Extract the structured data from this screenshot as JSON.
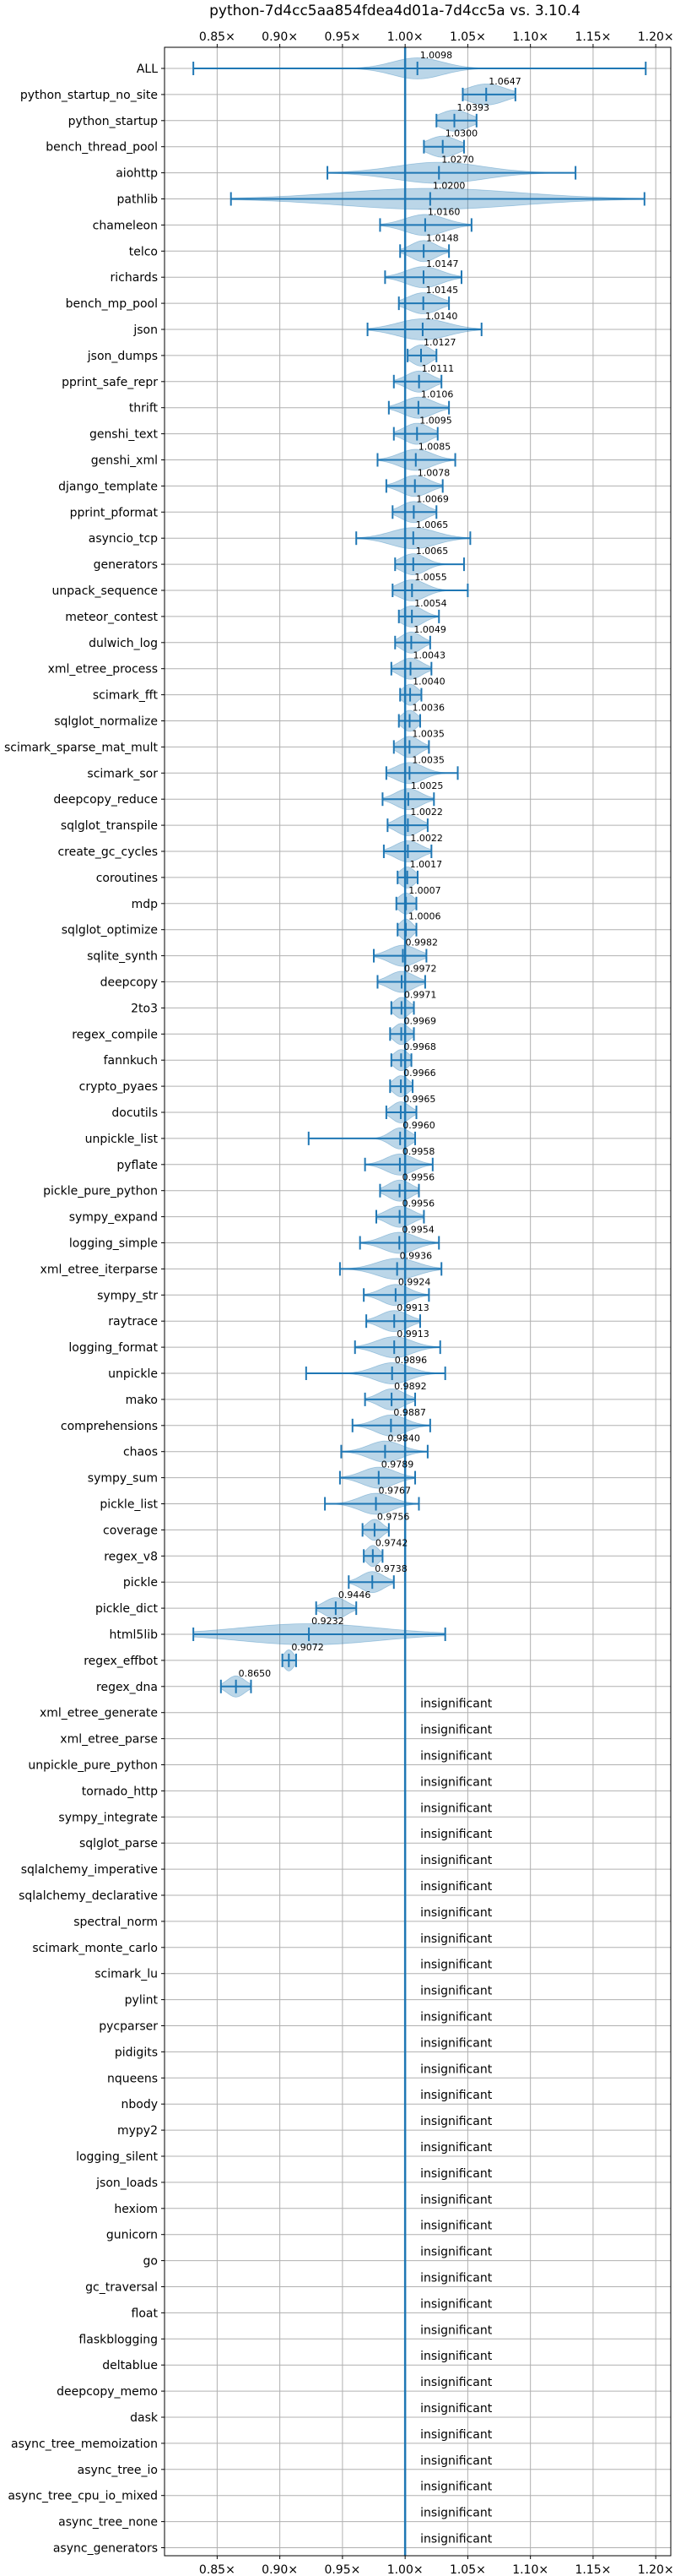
{
  "chart_data": {
    "type": "violin",
    "title": "python-7d4cc5aa854fdea4d01a-7d4cc5a vs. 3.10.4",
    "xlim": [
      0.808,
      1.212
    ],
    "x_ticks": [
      {
        "value": 0.85,
        "label": "0.85×"
      },
      {
        "value": 0.9,
        "label": "0.90×"
      },
      {
        "value": 0.95,
        "label": "0.95×"
      },
      {
        "value": 1.0,
        "label": "1.00×"
      },
      {
        "value": 1.05,
        "label": "1.05×"
      },
      {
        "value": 1.1,
        "label": "1.10×"
      },
      {
        "value": 1.15,
        "label": "1.15×"
      },
      {
        "value": 1.2,
        "label": "1.20×"
      }
    ],
    "reference_line": 1.0,
    "grid": true,
    "insignificant_text": "insignificant",
    "benchmarks": [
      {
        "name": "ALL",
        "mean": 1.0098,
        "label": "1.0098",
        "min": 0.831,
        "max": 1.192,
        "spread": 0.02
      },
      {
        "name": "python_startup_no_site",
        "mean": 1.0647,
        "label": "1.0647",
        "min": 1.046,
        "max": 1.088,
        "spread": 0.015
      },
      {
        "name": "python_startup",
        "mean": 1.0393,
        "label": "1.0393",
        "min": 1.025,
        "max": 1.057,
        "spread": 0.012
      },
      {
        "name": "bench_thread_pool",
        "mean": 1.03,
        "label": "1.0300",
        "min": 1.015,
        "max": 1.047,
        "spread": 0.012
      },
      {
        "name": "aiohttp",
        "mean": 1.027,
        "label": "1.0270",
        "min": 0.938,
        "max": 1.136,
        "spread": 0.035
      },
      {
        "name": "pathlib",
        "mean": 1.02,
        "label": "1.0200",
        "min": 0.861,
        "max": 1.191,
        "spread": 0.07
      },
      {
        "name": "chameleon",
        "mean": 1.016,
        "label": "1.0160",
        "min": 0.98,
        "max": 1.053,
        "spread": 0.016
      },
      {
        "name": "telco",
        "mean": 1.0148,
        "label": "1.0148",
        "min": 0.996,
        "max": 1.035,
        "spread": 0.01
      },
      {
        "name": "richards",
        "mean": 1.0147,
        "label": "1.0147",
        "min": 0.984,
        "max": 1.045,
        "spread": 0.014
      },
      {
        "name": "bench_mp_pool",
        "mean": 1.0145,
        "label": "1.0145",
        "min": 0.995,
        "max": 1.035,
        "spread": 0.012
      },
      {
        "name": "json",
        "mean": 1.014,
        "label": "1.0140",
        "min": 0.97,
        "max": 1.061,
        "spread": 0.02
      },
      {
        "name": "json_dumps",
        "mean": 1.0127,
        "label": "1.0127",
        "min": 1.002,
        "max": 1.025,
        "spread": 0.008
      },
      {
        "name": "pprint_safe_repr",
        "mean": 1.0111,
        "label": "1.0111",
        "min": 0.991,
        "max": 1.029,
        "spread": 0.01
      },
      {
        "name": "thrift",
        "mean": 1.0106,
        "label": "1.0106",
        "min": 0.987,
        "max": 1.035,
        "spread": 0.012
      },
      {
        "name": "genshi_text",
        "mean": 1.0095,
        "label": "1.0095",
        "min": 0.991,
        "max": 1.026,
        "spread": 0.01
      },
      {
        "name": "genshi_xml",
        "mean": 1.0085,
        "label": "1.0085",
        "min": 0.978,
        "max": 1.04,
        "spread": 0.013
      },
      {
        "name": "django_template",
        "mean": 1.0078,
        "label": "1.0078",
        "min": 0.985,
        "max": 1.03,
        "spread": 0.011
      },
      {
        "name": "pprint_pformat",
        "mean": 1.0069,
        "label": "1.0069",
        "min": 0.99,
        "max": 1.025,
        "spread": 0.01
      },
      {
        "name": "asyncio_tcp",
        "mean": 1.0065,
        "label": "1.0065",
        "min": 0.961,
        "max": 1.052,
        "spread": 0.018
      },
      {
        "name": "generators",
        "mean": 1.0065,
        "label": "1.0065",
        "min": 0.992,
        "max": 1.047,
        "spread": 0.01
      },
      {
        "name": "unpack_sequence",
        "mean": 1.0055,
        "label": "1.0055",
        "min": 0.99,
        "max": 1.05,
        "spread": 0.011
      },
      {
        "name": "meteor_contest",
        "mean": 1.0054,
        "label": "1.0054",
        "min": 0.995,
        "max": 1.027,
        "spread": 0.009
      },
      {
        "name": "dulwich_log",
        "mean": 1.0049,
        "label": "1.0049",
        "min": 0.992,
        "max": 1.02,
        "spread": 0.008
      },
      {
        "name": "xml_etree_process",
        "mean": 1.0043,
        "label": "1.0043",
        "min": 0.989,
        "max": 1.021,
        "spread": 0.009
      },
      {
        "name": "scimark_fft",
        "mean": 1.004,
        "label": "1.0040",
        "min": 0.996,
        "max": 1.013,
        "spread": 0.006
      },
      {
        "name": "sqlglot_normalize",
        "mean": 1.0036,
        "label": "1.0036",
        "min": 0.995,
        "max": 1.012,
        "spread": 0.006
      },
      {
        "name": "scimark_sparse_mat_mult",
        "mean": 1.0035,
        "label": "1.0035",
        "min": 0.991,
        "max": 1.019,
        "spread": 0.008
      },
      {
        "name": "scimark_sor",
        "mean": 1.0035,
        "label": "1.0035",
        "min": 0.985,
        "max": 1.042,
        "spread": 0.011
      },
      {
        "name": "deepcopy_reduce",
        "mean": 1.0025,
        "label": "1.0025",
        "min": 0.982,
        "max": 1.023,
        "spread": 0.01
      },
      {
        "name": "sqlglot_transpile",
        "mean": 1.0022,
        "label": "1.0022",
        "min": 0.986,
        "max": 1.018,
        "spread": 0.009
      },
      {
        "name": "create_gc_cycles",
        "mean": 1.0022,
        "label": "1.0022",
        "min": 0.983,
        "max": 1.021,
        "spread": 0.01
      },
      {
        "name": "coroutines",
        "mean": 1.0017,
        "label": "1.0017",
        "min": 0.994,
        "max": 1.01,
        "spread": 0.006
      },
      {
        "name": "mdp",
        "mean": 1.0007,
        "label": "1.0007",
        "min": 0.993,
        "max": 1.009,
        "spread": 0.006
      },
      {
        "name": "sqlglot_optimize",
        "mean": 1.0006,
        "label": "1.0006",
        "min": 0.994,
        "max": 1.009,
        "spread": 0.005
      },
      {
        "name": "sqlite_synth",
        "mean": 0.9982,
        "label": "0.9982",
        "min": 0.975,
        "max": 1.017,
        "spread": 0.011
      },
      {
        "name": "deepcopy",
        "mean": 0.9972,
        "label": "0.9972",
        "min": 0.978,
        "max": 1.016,
        "spread": 0.01
      },
      {
        "name": "2to3",
        "mean": 0.9971,
        "label": "0.9971",
        "min": 0.989,
        "max": 1.007,
        "spread": 0.006
      },
      {
        "name": "regex_compile",
        "mean": 0.9969,
        "label": "0.9969",
        "min": 0.988,
        "max": 1.007,
        "spread": 0.006
      },
      {
        "name": "fannkuch",
        "mean": 0.9968,
        "label": "0.9968",
        "min": 0.989,
        "max": 1.005,
        "spread": 0.006
      },
      {
        "name": "crypto_pyaes",
        "mean": 0.9966,
        "label": "0.9966",
        "min": 0.988,
        "max": 1.006,
        "spread": 0.006
      },
      {
        "name": "docutils",
        "mean": 0.9965,
        "label": "0.9965",
        "min": 0.985,
        "max": 1.009,
        "spread": 0.007
      },
      {
        "name": "unpickle_list",
        "mean": 0.996,
        "label": "0.9960",
        "min": 0.923,
        "max": 1.008,
        "spread": 0.008
      },
      {
        "name": "pyflate",
        "mean": 0.9958,
        "label": "0.9958",
        "min": 0.968,
        "max": 1.022,
        "spread": 0.011
      },
      {
        "name": "pickle_pure_python",
        "mean": 0.9956,
        "label": "0.9956",
        "min": 0.98,
        "max": 1.011,
        "spread": 0.009
      },
      {
        "name": "sympy_expand",
        "mean": 0.9956,
        "label": "0.9956",
        "min": 0.977,
        "max": 1.015,
        "spread": 0.01
      },
      {
        "name": "logging_simple",
        "mean": 0.9954,
        "label": "0.9954",
        "min": 0.964,
        "max": 1.027,
        "spread": 0.013
      },
      {
        "name": "xml_etree_iterparse",
        "mean": 0.9936,
        "label": "0.9936",
        "min": 0.948,
        "max": 1.029,
        "spread": 0.016
      },
      {
        "name": "sympy_str",
        "mean": 0.9924,
        "label": "0.9924",
        "min": 0.967,
        "max": 1.019,
        "spread": 0.011
      },
      {
        "name": "raytrace",
        "mean": 0.9913,
        "label": "0.9913",
        "min": 0.969,
        "max": 1.012,
        "spread": 0.011
      },
      {
        "name": "logging_format",
        "mean": 0.9913,
        "label": "0.9913",
        "min": 0.96,
        "max": 1.028,
        "spread": 0.014
      },
      {
        "name": "unpickle",
        "mean": 0.9896,
        "label": "0.9896",
        "min": 0.921,
        "max": 1.032,
        "spread": 0.014
      },
      {
        "name": "mako",
        "mean": 0.9892,
        "label": "0.9892",
        "min": 0.968,
        "max": 1.008,
        "spread": 0.01
      },
      {
        "name": "comprehensions",
        "mean": 0.9887,
        "label": "0.9887",
        "min": 0.958,
        "max": 1.02,
        "spread": 0.012
      },
      {
        "name": "chaos",
        "mean": 0.984,
        "label": "0.9840",
        "min": 0.949,
        "max": 1.018,
        "spread": 0.013
      },
      {
        "name": "sympy_sum",
        "mean": 0.9789,
        "label": "0.9789",
        "min": 0.948,
        "max": 1.008,
        "spread": 0.013
      },
      {
        "name": "pickle_list",
        "mean": 0.9767,
        "label": "0.9767",
        "min": 0.936,
        "max": 1.011,
        "spread": 0.013
      },
      {
        "name": "coverage",
        "mean": 0.9756,
        "label": "0.9756",
        "min": 0.966,
        "max": 0.987,
        "spread": 0.006
      },
      {
        "name": "regex_v8",
        "mean": 0.9742,
        "label": "0.9742",
        "min": 0.967,
        "max": 0.982,
        "spread": 0.005
      },
      {
        "name": "pickle",
        "mean": 0.9738,
        "label": "0.9738",
        "min": 0.955,
        "max": 0.991,
        "spread": 0.009
      },
      {
        "name": "pickle_dict",
        "mean": 0.9446,
        "label": "0.9446",
        "min": 0.929,
        "max": 0.961,
        "spread": 0.009
      },
      {
        "name": "html5lib",
        "mean": 0.9232,
        "label": "0.9232",
        "min": 0.831,
        "max": 1.032,
        "spread": 0.055
      },
      {
        "name": "regex_effbot",
        "mean": 0.9072,
        "label": "0.9072",
        "min": 0.902,
        "max": 0.913,
        "spread": 0.004
      },
      {
        "name": "regex_dna",
        "mean": 0.865,
        "label": "0.8650",
        "min": 0.853,
        "max": 0.877,
        "spread": 0.007
      },
      {
        "name": "xml_etree_generate",
        "insignificant": true
      },
      {
        "name": "xml_etree_parse",
        "insignificant": true
      },
      {
        "name": "unpickle_pure_python",
        "insignificant": true
      },
      {
        "name": "tornado_http",
        "insignificant": true
      },
      {
        "name": "sympy_integrate",
        "insignificant": true
      },
      {
        "name": "sqlglot_parse",
        "insignificant": true
      },
      {
        "name": "sqlalchemy_imperative",
        "insignificant": true
      },
      {
        "name": "sqlalchemy_declarative",
        "insignificant": true
      },
      {
        "name": "spectral_norm",
        "insignificant": true
      },
      {
        "name": "scimark_monte_carlo",
        "insignificant": true
      },
      {
        "name": "scimark_lu",
        "insignificant": true
      },
      {
        "name": "pylint",
        "insignificant": true
      },
      {
        "name": "pycparser",
        "insignificant": true
      },
      {
        "name": "pidigits",
        "insignificant": true
      },
      {
        "name": "nqueens",
        "insignificant": true
      },
      {
        "name": "nbody",
        "insignificant": true
      },
      {
        "name": "mypy2",
        "insignificant": true
      },
      {
        "name": "logging_silent",
        "insignificant": true
      },
      {
        "name": "json_loads",
        "insignificant": true
      },
      {
        "name": "hexiom",
        "insignificant": true
      },
      {
        "name": "gunicorn",
        "insignificant": true
      },
      {
        "name": "go",
        "insignificant": true
      },
      {
        "name": "gc_traversal",
        "insignificant": true
      },
      {
        "name": "float",
        "insignificant": true
      },
      {
        "name": "flaskblogging",
        "insignificant": true
      },
      {
        "name": "deltablue",
        "insignificant": true
      },
      {
        "name": "deepcopy_memo",
        "insignificant": true
      },
      {
        "name": "dask",
        "insignificant": true
      },
      {
        "name": "async_tree_memoization",
        "insignificant": true
      },
      {
        "name": "async_tree_io",
        "insignificant": true
      },
      {
        "name": "async_tree_cpu_io_mixed",
        "insignificant": true
      },
      {
        "name": "async_tree_none",
        "insignificant": true
      },
      {
        "name": "async_generators",
        "insignificant": true
      }
    ],
    "colors": {
      "series": "#1f77b4",
      "grid": "#b0b0b0"
    }
  }
}
